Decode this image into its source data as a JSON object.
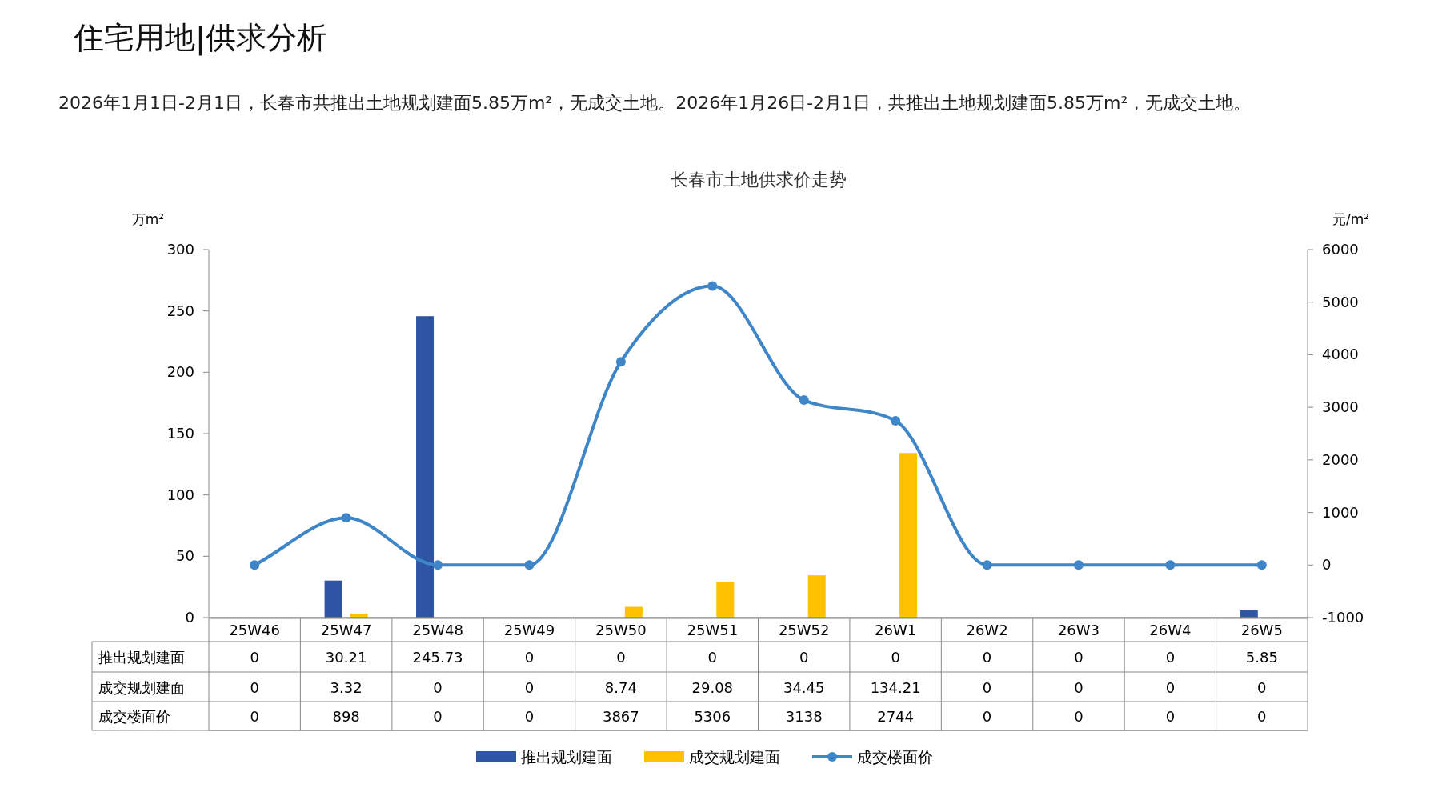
{
  "chart_data": {
    "type": "bar",
    "title": "住宅用地|供求分析",
    "subtitle": "长春市土地供求价走势",
    "annotations": [
      "2026年1月1日-2月1日，长春市共推出土地规划建面5.85万m²，无成交土地。2026年1月26日-2月1日，共推出土地规划建面5.85万m²，无成交土地。"
    ],
    "ylabel": "万m²",
    "y2label": "元/m²",
    "categories": [
      "25W46",
      "25W47",
      "25W48",
      "25W49",
      "25W50",
      "25W51",
      "25W52",
      "26W1",
      "26W2",
      "26W3",
      "26W4",
      "26W5"
    ],
    "series": [
      {
        "name": "推出规划建面",
        "color": "#2e54a4",
        "values": [
          0,
          30.21,
          245.73,
          0,
          0,
          0,
          0,
          0,
          0,
          0,
          0,
          5.85
        ]
      },
      {
        "name": "成交规划建面",
        "color": "#ffc000",
        "values": [
          0,
          3.32,
          0,
          0,
          8.74,
          29.08,
          34.45,
          134.21,
          0,
          0,
          0,
          0
        ]
      },
      {
        "name": "成交楼面价",
        "type": "line",
        "axis": "y2",
        "color": "#3f86c8",
        "marker": "circle",
        "values": [
          0,
          898,
          0,
          0,
          3867,
          5306,
          3138,
          2744,
          0,
          0,
          0,
          0
        ]
      }
    ],
    "ylim": [
      0,
      300
    ],
    "yticks": [
      0,
      50,
      100,
      150,
      200,
      250,
      300
    ],
    "y2lim": [
      -1000,
      6000
    ],
    "y2ticks": [
      -1000,
      0,
      1000,
      2000,
      3000,
      4000,
      5000,
      6000
    ],
    "data_labels": true,
    "legend": "bottom",
    "grid": false
  }
}
